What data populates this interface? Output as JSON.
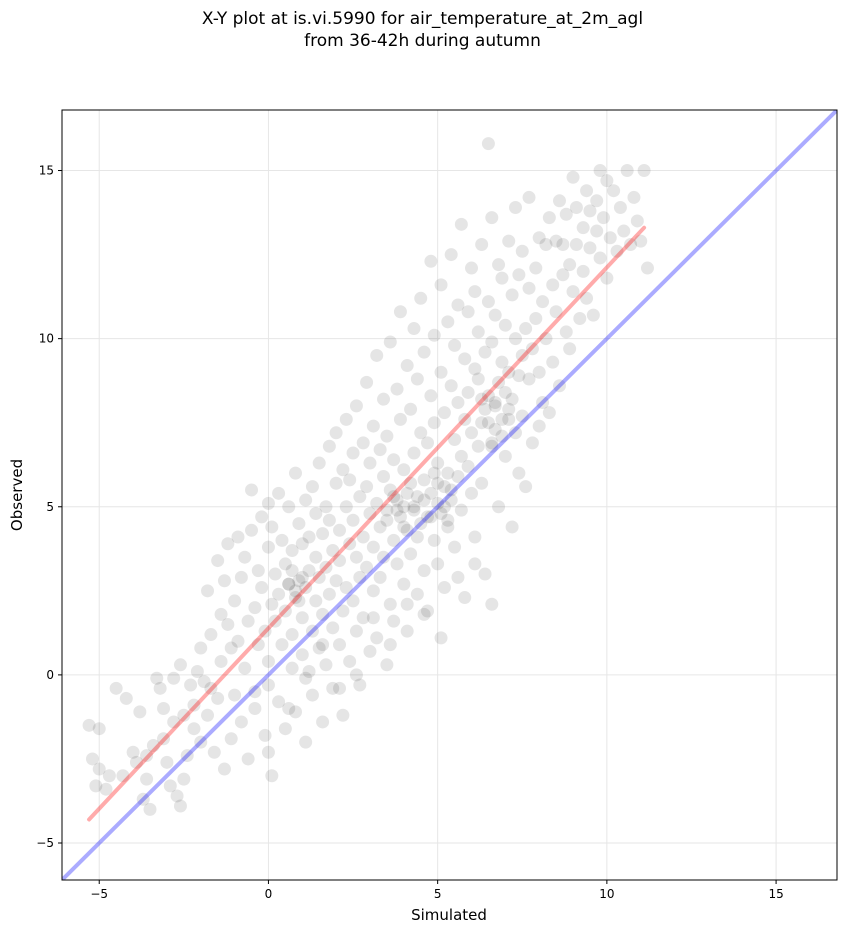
{
  "chart_data": {
    "type": "scatter",
    "title": "X-Y plot at is.vi.5990 for air_temperature_at_2m_agl",
    "subtitle": "from 36-42h during autumn",
    "xlabel": "Simulated",
    "ylabel": "Observed",
    "xlim": [
      -6.1,
      16.8
    ],
    "ylim": [
      -6.1,
      16.8
    ],
    "xticks": [
      -5,
      0,
      5,
      10,
      15
    ],
    "yticks": [
      -5,
      0,
      5,
      10,
      15
    ],
    "xtick_labels": [
      "−5",
      "0",
      "5",
      "10",
      "15"
    ],
    "ytick_labels": [
      "−5",
      "0",
      "5",
      "10",
      "15"
    ],
    "grid": true,
    "colors": {
      "points": "#000000",
      "fit_line": "#ff0000",
      "identity_line": "#0000ff",
      "grid": "#e6e6e6"
    },
    "fit_line": {
      "x": [
        -5.3,
        11.1
      ],
      "y": [
        -4.3,
        13.3
      ]
    },
    "identity_line": {
      "x": [
        -6.1,
        16.8
      ],
      "y": [
        -6.1,
        16.8
      ]
    },
    "points": [
      [
        -5.3,
        -1.5
      ],
      [
        -5.2,
        -2.5
      ],
      [
        -5.1,
        -3.3
      ],
      [
        -5.0,
        -2.8
      ],
      [
        -5.0,
        -1.6
      ],
      [
        -4.8,
        -3.4
      ],
      [
        -4.7,
        -3.0
      ],
      [
        -4.5,
        -0.4
      ],
      [
        -4.3,
        -3.0
      ],
      [
        -4.2,
        -0.7
      ],
      [
        -4.0,
        -2.3
      ],
      [
        -3.9,
        -2.6
      ],
      [
        -3.8,
        -1.1
      ],
      [
        -3.7,
        -3.7
      ],
      [
        -3.6,
        -2.4
      ],
      [
        -3.6,
        -3.1
      ],
      [
        -3.5,
        -4.0
      ],
      [
        -3.4,
        -2.1
      ],
      [
        -3.3,
        -0.1
      ],
      [
        -3.2,
        -0.4
      ],
      [
        -3.1,
        -1.9
      ],
      [
        -3.0,
        -2.6
      ],
      [
        -2.9,
        -3.3
      ],
      [
        -2.8,
        -1.4
      ],
      [
        -2.8,
        -0.1
      ],
      [
        -2.7,
        -3.6
      ],
      [
        -2.6,
        -3.9
      ],
      [
        -2.6,
        0.3
      ],
      [
        -2.5,
        -1.2
      ],
      [
        -2.5,
        -3.1
      ],
      [
        -2.4,
        -2.4
      ],
      [
        -2.3,
        -0.3
      ],
      [
        -2.2,
        -1.6
      ],
      [
        -2.1,
        0.1
      ],
      [
        -2.0,
        -2.0
      ],
      [
        -2.0,
        0.8
      ],
      [
        -1.9,
        -0.2
      ],
      [
        -1.8,
        2.5
      ],
      [
        -1.8,
        -1.2
      ],
      [
        -1.7,
        1.2
      ],
      [
        -1.6,
        -2.3
      ],
      [
        -1.5,
        3.4
      ],
      [
        -1.5,
        -0.7
      ],
      [
        -1.4,
        1.8
      ],
      [
        -1.4,
        0.4
      ],
      [
        -1.3,
        2.8
      ],
      [
        -1.3,
        -2.8
      ],
      [
        -1.2,
        1.5
      ],
      [
        -1.2,
        3.9
      ],
      [
        -1.1,
        0.8
      ],
      [
        -1.0,
        -0.6
      ],
      [
        -1.0,
        2.2
      ],
      [
        -0.9,
        4.1
      ],
      [
        -0.9,
        1.0
      ],
      [
        -0.8,
        -1.4
      ],
      [
        -0.8,
        2.9
      ],
      [
        -0.7,
        0.2
      ],
      [
        -0.7,
        3.5
      ],
      [
        -0.6,
        -2.5
      ],
      [
        -0.6,
        1.6
      ],
      [
        -0.5,
        4.3
      ],
      [
        -0.5,
        5.5
      ],
      [
        -0.4,
        2.0
      ],
      [
        -0.4,
        -0.5
      ],
      [
        -0.3,
        3.1
      ],
      [
        -0.3,
        0.9
      ],
      [
        -0.2,
        4.7
      ],
      [
        -0.2,
        2.6
      ],
      [
        -0.1,
        -1.8
      ],
      [
        -0.1,
        1.3
      ],
      [
        0.0,
        3.8
      ],
      [
        0.0,
        5.1
      ],
      [
        0.0,
        0.4
      ],
      [
        0.0,
        -2.3
      ],
      [
        0.1,
        2.1
      ],
      [
        0.1,
        4.4
      ],
      [
        0.1,
        -3.0
      ],
      [
        0.2,
        1.6
      ],
      [
        0.2,
        3.0
      ],
      [
        0.3,
        5.4
      ],
      [
        0.3,
        -0.8
      ],
      [
        0.3,
        2.4
      ],
      [
        0.4,
        4.0
      ],
      [
        0.4,
        0.9
      ],
      [
        0.5,
        3.3
      ],
      [
        0.5,
        -1.6
      ],
      [
        0.5,
        1.9
      ],
      [
        0.6,
        5.0
      ],
      [
        0.6,
        2.7
      ],
      [
        0.7,
        0.2
      ],
      [
        0.7,
        3.7
      ],
      [
        0.7,
        1.2
      ],
      [
        0.8,
        6.0
      ],
      [
        0.8,
        2.3
      ],
      [
        0.8,
        -1.1
      ],
      [
        0.9,
        4.5
      ],
      [
        0.9,
        2.8
      ],
      [
        1.0,
        0.6
      ],
      [
        1.0,
        3.9
      ],
      [
        1.0,
        1.7
      ],
      [
        1.1,
        5.2
      ],
      [
        1.1,
        2.6
      ],
      [
        1.1,
        -2.0
      ],
      [
        1.2,
        4.1
      ],
      [
        1.2,
        0.1
      ],
      [
        1.2,
        3.1
      ],
      [
        1.3,
        1.3
      ],
      [
        1.3,
        5.6
      ],
      [
        1.3,
        -0.6
      ],
      [
        1.4,
        2.2
      ],
      [
        1.4,
        4.8
      ],
      [
        1.4,
        3.5
      ],
      [
        1.5,
        0.8
      ],
      [
        1.5,
        6.3
      ],
      [
        1.5,
        2.9
      ],
      [
        1.6,
        -1.4
      ],
      [
        1.6,
        4.2
      ],
      [
        1.6,
        1.8
      ],
      [
        1.7,
        5.0
      ],
      [
        1.7,
        3.2
      ],
      [
        1.7,
        0.3
      ],
      [
        1.8,
        6.8
      ],
      [
        1.8,
        2.4
      ],
      [
        1.8,
        4.6
      ],
      [
        1.9,
        -0.4
      ],
      [
        1.9,
        3.7
      ],
      [
        1.9,
        1.4
      ],
      [
        2.0,
        5.7
      ],
      [
        2.0,
        2.8
      ],
      [
        2.0,
        7.2
      ],
      [
        2.1,
        0.9
      ],
      [
        2.1,
        4.3
      ],
      [
        2.1,
        3.4
      ],
      [
        2.2,
        6.1
      ],
      [
        2.2,
        1.9
      ],
      [
        2.2,
        -1.2
      ],
      [
        2.3,
        5.0
      ],
      [
        2.3,
        2.6
      ],
      [
        2.3,
        7.6
      ],
      [
        2.4,
        3.9
      ],
      [
        2.4,
        0.4
      ],
      [
        2.4,
        5.8
      ],
      [
        2.5,
        2.2
      ],
      [
        2.5,
        4.6
      ],
      [
        2.5,
        6.6
      ],
      [
        2.6,
        1.3
      ],
      [
        2.6,
        3.5
      ],
      [
        2.6,
        8.0
      ],
      [
        2.7,
        5.3
      ],
      [
        2.7,
        -0.3
      ],
      [
        2.7,
        2.9
      ],
      [
        2.8,
        4.1
      ],
      [
        2.8,
        6.9
      ],
      [
        2.8,
        1.7
      ],
      [
        2.9,
        5.6
      ],
      [
        2.9,
        3.2
      ],
      [
        2.9,
        8.7
      ],
      [
        3.0,
        0.7
      ],
      [
        3.0,
        4.8
      ],
      [
        3.0,
        6.3
      ],
      [
        3.1,
        2.5
      ],
      [
        3.1,
        7.4
      ],
      [
        3.1,
        3.8
      ],
      [
        3.2,
        5.1
      ],
      [
        3.2,
        1.1
      ],
      [
        3.2,
        9.5
      ],
      [
        3.3,
        4.4
      ],
      [
        3.3,
        6.7
      ],
      [
        3.3,
        2.9
      ],
      [
        3.4,
        5.9
      ],
      [
        3.4,
        8.2
      ],
      [
        3.4,
        3.5
      ],
      [
        3.5,
        0.3
      ],
      [
        3.5,
        4.9
      ],
      [
        3.5,
        7.1
      ],
      [
        3.6,
        2.1
      ],
      [
        3.6,
        5.5
      ],
      [
        3.6,
        9.9
      ],
      [
        3.7,
        4.0
      ],
      [
        3.7,
        6.4
      ],
      [
        3.7,
        1.6
      ],
      [
        3.8,
        5.2
      ],
      [
        3.8,
        8.5
      ],
      [
        3.8,
        3.3
      ],
      [
        3.9,
        4.7
      ],
      [
        3.9,
        7.6
      ],
      [
        3.9,
        10.8
      ],
      [
        4.0,
        2.7
      ],
      [
        4.0,
        5.0
      ],
      [
        4.0,
        6.1
      ],
      [
        4.1,
        4.3
      ],
      [
        4.1,
        9.2
      ],
      [
        4.1,
        1.3
      ],
      [
        4.2,
        5.7
      ],
      [
        4.2,
        7.9
      ],
      [
        4.2,
        3.6
      ],
      [
        4.3,
        4.9
      ],
      [
        4.3,
        10.3
      ],
      [
        4.3,
        6.6
      ],
      [
        4.4,
        2.4
      ],
      [
        4.4,
        5.3
      ],
      [
        4.4,
        8.8
      ],
      [
        4.5,
        4.5
      ],
      [
        4.5,
        7.2
      ],
      [
        4.5,
        11.2
      ],
      [
        4.6,
        3.1
      ],
      [
        4.6,
        5.8
      ],
      [
        4.6,
        9.6
      ],
      [
        4.7,
        4.7
      ],
      [
        4.7,
        6.9
      ],
      [
        4.7,
        1.9
      ],
      [
        4.8,
        5.4
      ],
      [
        4.8,
        8.3
      ],
      [
        4.8,
        12.3
      ],
      [
        4.9,
        4.0
      ],
      [
        4.9,
        7.5
      ],
      [
        4.9,
        10.1
      ],
      [
        5.0,
        5.1
      ],
      [
        5.0,
        6.3
      ],
      [
        5.0,
        3.3
      ],
      [
        5.1,
        9.0
      ],
      [
        5.1,
        4.8
      ],
      [
        5.1,
        11.6
      ],
      [
        5.2,
        5.6
      ],
      [
        5.2,
        7.8
      ],
      [
        5.2,
        2.6
      ],
      [
        5.3,
        6.0
      ],
      [
        5.3,
        10.5
      ],
      [
        5.3,
        4.4
      ],
      [
        5.4,
        8.6
      ],
      [
        5.4,
        5.2
      ],
      [
        5.4,
        12.5
      ],
      [
        5.5,
        7.0
      ],
      [
        5.5,
        3.8
      ],
      [
        5.5,
        9.8
      ],
      [
        5.6,
        5.9
      ],
      [
        5.6,
        8.1
      ],
      [
        5.6,
        11.0
      ],
      [
        5.7,
        6.5
      ],
      [
        5.7,
        4.9
      ],
      [
        5.7,
        13.4
      ],
      [
        5.8,
        7.6
      ],
      [
        5.8,
        9.4
      ],
      [
        5.8,
        2.3
      ],
      [
        5.9,
        6.2
      ],
      [
        5.9,
        10.8
      ],
      [
        5.9,
        8.4
      ],
      [
        6.0,
        5.4
      ],
      [
        6.0,
        12.1
      ],
      [
        6.0,
        7.2
      ],
      [
        6.1,
        9.1
      ],
      [
        6.1,
        4.1
      ],
      [
        6.1,
        11.4
      ],
      [
        6.2,
        6.8
      ],
      [
        6.2,
        8.8
      ],
      [
        6.2,
        10.2
      ],
      [
        6.3,
        7.5
      ],
      [
        6.3,
        5.7
      ],
      [
        6.3,
        12.8
      ],
      [
        6.4,
        9.6
      ],
      [
        6.4,
        7.9
      ],
      [
        6.4,
        3.0
      ],
      [
        6.5,
        8.3
      ],
      [
        6.5,
        11.1
      ],
      [
        6.5,
        15.8
      ],
      [
        6.6,
        6.9
      ],
      [
        6.6,
        9.9
      ],
      [
        6.6,
        13.6
      ],
      [
        6.7,
        8.1
      ],
      [
        6.7,
        7.3
      ],
      [
        6.7,
        10.7
      ],
      [
        6.8,
        5.0
      ],
      [
        6.8,
        8.7
      ],
      [
        6.8,
        12.2
      ],
      [
        6.9,
        7.6
      ],
      [
        6.9,
        9.3
      ],
      [
        6.9,
        11.8
      ],
      [
        7.0,
        8.4
      ],
      [
        7.0,
        6.5
      ],
      [
        7.0,
        10.4
      ],
      [
        7.1,
        7.9
      ],
      [
        7.1,
        12.9
      ],
      [
        7.1,
        9.0
      ],
      [
        7.2,
        4.4
      ],
      [
        7.2,
        8.2
      ],
      [
        7.2,
        11.3
      ],
      [
        7.3,
        7.2
      ],
      [
        7.3,
        10.0
      ],
      [
        7.3,
        13.9
      ],
      [
        7.4,
        8.9
      ],
      [
        7.4,
        6.0
      ],
      [
        7.4,
        11.9
      ],
      [
        7.5,
        9.5
      ],
      [
        7.5,
        7.7
      ],
      [
        7.5,
        12.6
      ],
      [
        7.6,
        10.3
      ],
      [
        7.6,
        5.6
      ],
      [
        7.7,
        8.8
      ],
      [
        7.7,
        11.5
      ],
      [
        7.7,
        14.2
      ],
      [
        7.8,
        9.7
      ],
      [
        7.8,
        6.9
      ],
      [
        7.9,
        12.1
      ],
      [
        7.9,
        10.6
      ],
      [
        8.0,
        7.4
      ],
      [
        8.0,
        13.0
      ],
      [
        8.0,
        9.0
      ],
      [
        8.1,
        11.1
      ],
      [
        8.1,
        8.1
      ],
      [
        8.2,
        12.8
      ],
      [
        8.2,
        10.0
      ],
      [
        8.3,
        13.6
      ],
      [
        8.3,
        7.8
      ],
      [
        8.4,
        11.6
      ],
      [
        8.4,
        9.3
      ],
      [
        8.5,
        12.9
      ],
      [
        8.5,
        10.8
      ],
      [
        8.6,
        14.1
      ],
      [
        8.6,
        8.6
      ],
      [
        8.7,
        11.9
      ],
      [
        8.7,
        12.8
      ],
      [
        8.8,
        10.2
      ],
      [
        8.8,
        13.7
      ],
      [
        8.9,
        12.2
      ],
      [
        8.9,
        9.7
      ],
      [
        9.0,
        14.8
      ],
      [
        9.0,
        11.4
      ],
      [
        9.1,
        12.8
      ],
      [
        9.1,
        13.9
      ],
      [
        9.2,
        10.6
      ],
      [
        9.3,
        13.3
      ],
      [
        9.3,
        12.0
      ],
      [
        9.4,
        14.4
      ],
      [
        9.4,
        11.2
      ],
      [
        9.5,
        13.8
      ],
      [
        9.5,
        12.7
      ],
      [
        9.6,
        10.7
      ],
      [
        9.7,
        14.1
      ],
      [
        9.7,
        13.2
      ],
      [
        9.8,
        15.0
      ],
      [
        9.8,
        12.4
      ],
      [
        9.9,
        13.6
      ],
      [
        10.0,
        14.7
      ],
      [
        10.0,
        11.8
      ],
      [
        10.1,
        13.0
      ],
      [
        10.2,
        14.4
      ],
      [
        10.3,
        12.6
      ],
      [
        10.4,
        13.9
      ],
      [
        10.5,
        13.2
      ],
      [
        10.6,
        15.0
      ],
      [
        10.7,
        12.8
      ],
      [
        10.8,
        14.2
      ],
      [
        10.9,
        13.5
      ],
      [
        11.0,
        12.9
      ],
      [
        11.1,
        15.0
      ],
      [
        11.2,
        12.1
      ],
      [
        -3.1,
        -1.0
      ],
      [
        -2.2,
        -0.9
      ],
      [
        -1.7,
        -0.4
      ],
      [
        -1.1,
        -1.9
      ],
      [
        -0.4,
        -1.0
      ],
      [
        0.0,
        -0.3
      ],
      [
        0.6,
        -1.0
      ],
      [
        1.1,
        -0.1
      ],
      [
        1.6,
        0.9
      ],
      [
        2.1,
        -0.4
      ],
      [
        2.6,
        0.0
      ],
      [
        3.1,
        1.7
      ],
      [
        3.6,
        0.9
      ],
      [
        4.1,
        2.1
      ],
      [
        4.6,
        1.8
      ],
      [
        5.1,
        1.1
      ],
      [
        5.6,
        2.9
      ],
      [
        6.1,
        3.3
      ],
      [
        6.6,
        2.1
      ],
      [
        3.5,
        4.6
      ],
      [
        3.8,
        4.9
      ],
      [
        4.1,
        5.4
      ],
      [
        4.3,
        5.0
      ],
      [
        4.6,
        5.2
      ],
      [
        4.8,
        4.7
      ],
      [
        5.0,
        5.7
      ],
      [
        5.2,
        5.0
      ],
      [
        5.4,
        5.5
      ],
      [
        3.7,
        5.3
      ],
      [
        4.0,
        4.4
      ],
      [
        4.4,
        4.1
      ],
      [
        4.9,
        6.0
      ],
      [
        5.3,
        4.6
      ],
      [
        0.6,
        2.7
      ],
      [
        0.8,
        2.5
      ],
      [
        1.0,
        2.9
      ],
      [
        0.9,
        2.2
      ],
      [
        0.7,
        3.1
      ],
      [
        6.5,
        7.5
      ],
      [
        6.7,
        8.0
      ],
      [
        6.9,
        7.1
      ],
      [
        7.1,
        7.6
      ],
      [
        6.3,
        8.2
      ],
      [
        6.6,
        6.8
      ]
    ]
  }
}
